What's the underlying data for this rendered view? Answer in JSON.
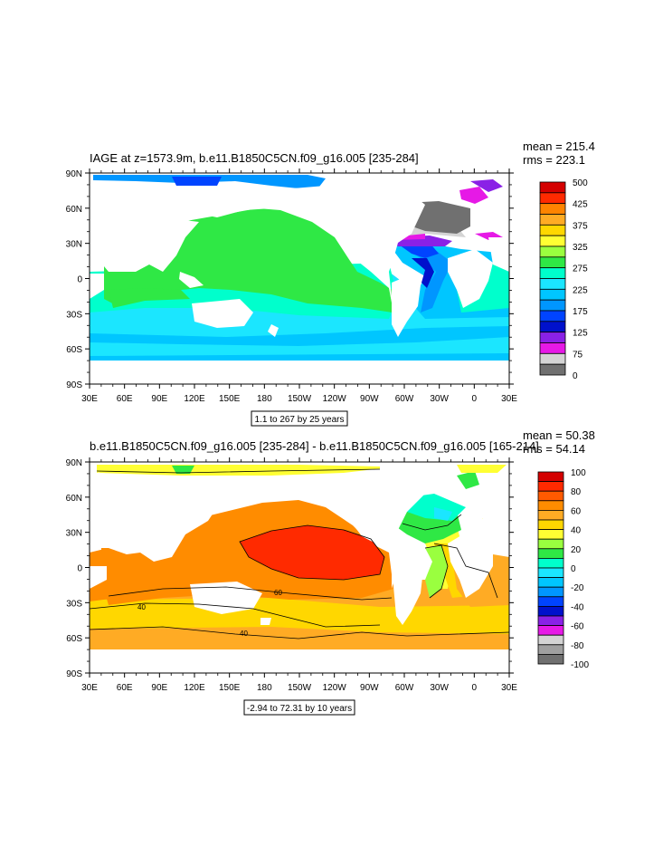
{
  "panels": [
    {
      "title": "IAGE at z=1573.9m, b.e11.B1850C5CN.f09_g16.005 [235-284]",
      "mean_label": "mean = 215.4",
      "rms_label": "rms = 223.1",
      "info_box": "1.1 to 267 by 25 years",
      "lat_ticks": [
        "90N",
        "60N",
        "30N",
        "0",
        "30S",
        "60S",
        "90S"
      ],
      "lon_ticks": [
        "30E",
        "60E",
        "90E",
        "120E",
        "150E",
        "180",
        "150W",
        "120W",
        "90W",
        "60W",
        "30W",
        "0",
        "30E"
      ],
      "colorbar": {
        "labels": [
          "500",
          "425",
          "375",
          "325",
          "275",
          "225",
          "175",
          "125",
          "75",
          "0"
        ],
        "colors": [
          "#d40000",
          "#ff2a00",
          "#ff8400",
          "#ffab24",
          "#ffd700",
          "#ffff33",
          "#9aff3f",
          "#2fe845",
          "#00ffcc",
          "#1be6ff",
          "#00c6ff",
          "#0096ff",
          "#0044ff",
          "#0011cc",
          "#8a21e6",
          "#e619e6",
          "#d4d4d4",
          "#707070"
        ]
      },
      "contour_labels": []
    },
    {
      "title": "b.e11.B1850C5CN.f09_g16.005 [235-284] - b.e11.B1850C5CN.f09_g16.005 [165-214]",
      "mean_label": "mean = 50.38",
      "rms_label": "rms = 54.14",
      "info_box": "-2.94 to 72.31 by 10 years",
      "lat_ticks": [
        "90N",
        "60N",
        "30N",
        "0",
        "30S",
        "60S",
        "90S"
      ],
      "lon_ticks": [
        "30E",
        "60E",
        "90E",
        "120E",
        "150E",
        "180",
        "150W",
        "120W",
        "90W",
        "60W",
        "30W",
        "0",
        "30E"
      ],
      "colorbar": {
        "labels": [
          "100",
          "80",
          "60",
          "40",
          "20",
          "0",
          "-20",
          "-40",
          "-60",
          "-80",
          "-100"
        ],
        "colors": [
          "#d40000",
          "#ff2a00",
          "#ff5a00",
          "#ff8c00",
          "#ffab24",
          "#ffd700",
          "#ffff33",
          "#9aff3f",
          "#2fe845",
          "#00ffcc",
          "#1be6ff",
          "#00c6ff",
          "#0096ff",
          "#0044ff",
          "#0011cc",
          "#8a21e6",
          "#e619e6",
          "#d4d4d4",
          "#a0a0a0",
          "#707070"
        ]
      },
      "contour_labels": [
        "60",
        "40",
        "40"
      ]
    }
  ]
}
